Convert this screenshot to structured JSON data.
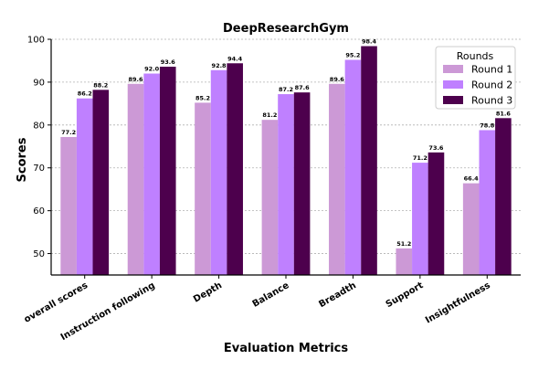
{
  "chart_data": {
    "type": "bar",
    "title": "DeepResearchGym",
    "xlabel": "Evaluation Metrics",
    "ylabel": "Scores",
    "ylim": [
      45,
      100
    ],
    "yticks": [
      50,
      60,
      70,
      80,
      90,
      100
    ],
    "grid": true,
    "legend": {
      "title": "Rounds",
      "placement": "top-right"
    },
    "categories": [
      "overall scores",
      "Instruction following",
      "Depth",
      "Balance",
      "Breadth",
      "Support",
      "Insightfulness"
    ],
    "series": [
      {
        "name": "Round 1",
        "color": "#cc99d6",
        "values": [
          77.2,
          89.6,
          85.2,
          81.2,
          89.6,
          51.2,
          66.4
        ]
      },
      {
        "name": "Round 2",
        "color": "#bf80ff",
        "values": [
          86.2,
          92.0,
          92.8,
          87.2,
          95.2,
          71.2,
          78.8
        ]
      },
      {
        "name": "Round 3",
        "color": "#4d004d",
        "values": [
          88.2,
          93.6,
          94.4,
          87.6,
          98.4,
          73.6,
          81.6
        ]
      }
    ]
  }
}
